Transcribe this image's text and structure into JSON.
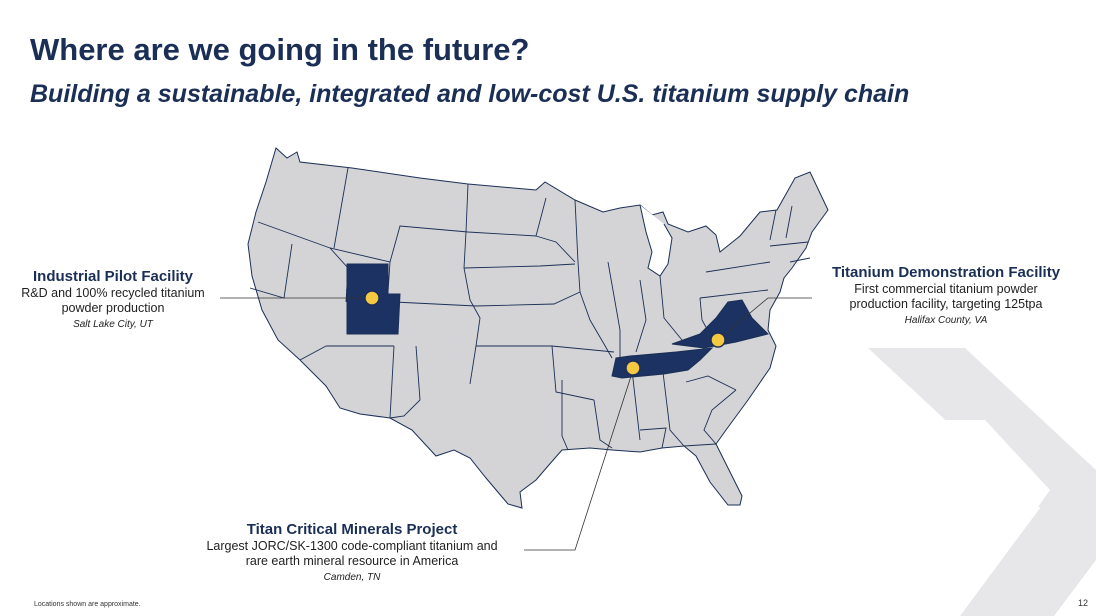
{
  "title": "Where are we going in the future?",
  "subtitle": "Building a sustainable, integrated and low-cost U.S. titanium supply chain",
  "colors": {
    "navy": "#1b2f56",
    "state_fill": "#d4d4d6",
    "state_border": "#1b2f56",
    "highlight_fill": "#1b3262",
    "marker_fill": "#f5c842",
    "deco_chevron": "#e7e7e9"
  },
  "map": {
    "region": "Contiguous United States",
    "highlighted_states": [
      "Utah",
      "Tennessee",
      "Virginia"
    ],
    "marker_icon": "location-dot-icon"
  },
  "callouts": {
    "utah": {
      "title": "Industrial Pilot Facility",
      "desc_line1": "R&D and 100% recycled titanium",
      "desc_line2": "powder production",
      "location": "Salt Lake City, UT"
    },
    "virginia": {
      "title": "Titanium Demonstration Facility",
      "desc_line1": "First commercial titanium powder",
      "desc_line2": "production facility, targeting 125tpa",
      "location": "Halifax County, VA"
    },
    "tennessee": {
      "title": "Titan Critical Minerals Project",
      "desc_line1": "Largest JORC/SK-1300 code-compliant titanium and",
      "desc_line2": "rare earth mineral resource in America",
      "location": "Camden, TN"
    }
  },
  "footnote": "Locations shown are approximate.",
  "page_number": "12"
}
